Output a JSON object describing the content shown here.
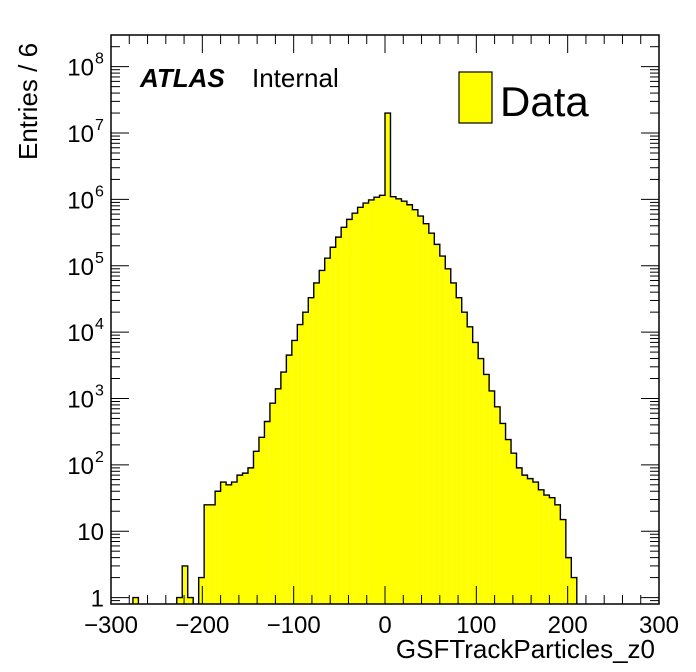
{
  "chart_data": {
    "type": "histogram",
    "title": "",
    "xlabel": "GSFTrackParticles_z0",
    "ylabel": "Entries / 6",
    "xlim": [
      -300,
      300
    ],
    "ylim": [
      0.8,
      300000000
    ],
    "yscale": "log",
    "bin_width": 6,
    "fill_color": "#ffff00",
    "edge_color": "#000000",
    "x_ticks": [
      "−300",
      "−200",
      "−100",
      "0",
      "100",
      "200",
      "300"
    ],
    "y_ticks": [
      {
        "value": 1,
        "base": "1",
        "exp": ""
      },
      {
        "value": 10,
        "base": "10",
        "exp": ""
      },
      {
        "value": 100,
        "base": "10",
        "exp": "2"
      },
      {
        "value": 1000,
        "base": "10",
        "exp": "3"
      },
      {
        "value": 10000,
        "base": "10",
        "exp": "4"
      },
      {
        "value": 100000,
        "base": "10",
        "exp": "5"
      },
      {
        "value": 1000000,
        "base": "10",
        "exp": "6"
      },
      {
        "value": 10000000,
        "base": "10",
        "exp": "7"
      },
      {
        "value": 100000000,
        "base": "10",
        "exp": "8"
      }
    ],
    "legend": {
      "label": "Data",
      "position": "top-right"
    },
    "label_atlas": "ATLAS",
    "label_status": "Internal",
    "bins": [
      {
        "x0": -276,
        "value": 1
      },
      {
        "x0": -228,
        "value": 1
      },
      {
        "x0": -222,
        "value": 3
      },
      {
        "x0": -216,
        "value": 1
      },
      {
        "x0": -204,
        "value": 2
      },
      {
        "x0": -198,
        "value": 25
      },
      {
        "x0": -192,
        "value": 25
      },
      {
        "x0": -186,
        "value": 40
      },
      {
        "x0": -180,
        "value": 55
      },
      {
        "x0": -174,
        "value": 50
      },
      {
        "x0": -168,
        "value": 55
      },
      {
        "x0": -162,
        "value": 70
      },
      {
        "x0": -156,
        "value": 75
      },
      {
        "x0": -150,
        "value": 90
      },
      {
        "x0": -144,
        "value": 160
      },
      {
        "x0": -138,
        "value": 260
      },
      {
        "x0": -132,
        "value": 450
      },
      {
        "x0": -126,
        "value": 850
      },
      {
        "x0": -120,
        "value": 1400
      },
      {
        "x0": -114,
        "value": 2500
      },
      {
        "x0": -108,
        "value": 4500
      },
      {
        "x0": -102,
        "value": 7500
      },
      {
        "x0": -96,
        "value": 13000
      },
      {
        "x0": -90,
        "value": 20000
      },
      {
        "x0": -84,
        "value": 33000
      },
      {
        "x0": -78,
        "value": 55000
      },
      {
        "x0": -72,
        "value": 85000
      },
      {
        "x0": -66,
        "value": 130000
      },
      {
        "x0": -60,
        "value": 190000
      },
      {
        "x0": -54,
        "value": 270000
      },
      {
        "x0": -48,
        "value": 380000
      },
      {
        "x0": -42,
        "value": 500000
      },
      {
        "x0": -36,
        "value": 620000
      },
      {
        "x0": -30,
        "value": 760000
      },
      {
        "x0": -24,
        "value": 880000
      },
      {
        "x0": -18,
        "value": 980000
      },
      {
        "x0": -12,
        "value": 1080000
      },
      {
        "x0": -6,
        "value": 1150000
      },
      {
        "x0": 0,
        "value": 20000000
      },
      {
        "x0": 6,
        "value": 1100000
      },
      {
        "x0": 12,
        "value": 1020000
      },
      {
        "x0": 18,
        "value": 940000
      },
      {
        "x0": 24,
        "value": 830000
      },
      {
        "x0": 30,
        "value": 700000
      },
      {
        "x0": 36,
        "value": 560000
      },
      {
        "x0": 42,
        "value": 430000
      },
      {
        "x0": 48,
        "value": 310000
      },
      {
        "x0": 54,
        "value": 210000
      },
      {
        "x0": 60,
        "value": 140000
      },
      {
        "x0": 66,
        "value": 90000
      },
      {
        "x0": 72,
        "value": 55000
      },
      {
        "x0": 78,
        "value": 33000
      },
      {
        "x0": 84,
        "value": 20000
      },
      {
        "x0": 90,
        "value": 12000
      },
      {
        "x0": 96,
        "value": 7000
      },
      {
        "x0": 102,
        "value": 4000
      },
      {
        "x0": 108,
        "value": 2300
      },
      {
        "x0": 114,
        "value": 1300
      },
      {
        "x0": 120,
        "value": 750
      },
      {
        "x0": 126,
        "value": 420
      },
      {
        "x0": 132,
        "value": 240
      },
      {
        "x0": 138,
        "value": 150
      },
      {
        "x0": 144,
        "value": 90
      },
      {
        "x0": 150,
        "value": 70
      },
      {
        "x0": 156,
        "value": 62
      },
      {
        "x0": 162,
        "value": 55
      },
      {
        "x0": 168,
        "value": 42
      },
      {
        "x0": 174,
        "value": 35
      },
      {
        "x0": 180,
        "value": 32
      },
      {
        "x0": 186,
        "value": 25
      },
      {
        "x0": 192,
        "value": 15
      },
      {
        "x0": 198,
        "value": 4
      },
      {
        "x0": 204,
        "value": 2
      }
    ]
  }
}
